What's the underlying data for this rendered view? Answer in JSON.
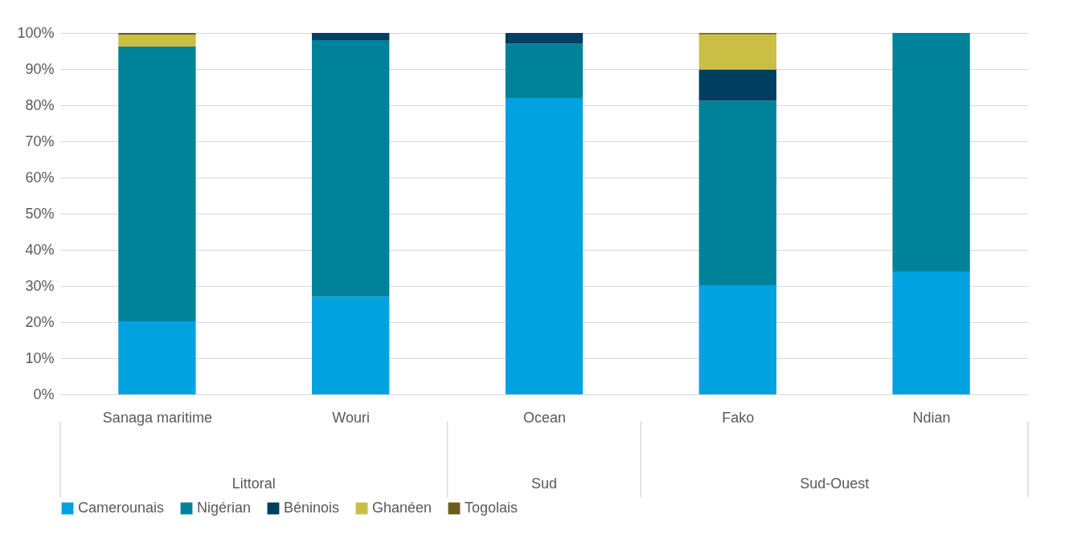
{
  "chart_data": {
    "type": "bar",
    "stacked": true,
    "categories": [
      "Sanaga maritime",
      "Wouri",
      "Ocean",
      "Fako",
      "Ndian"
    ],
    "series": [
      {
        "name": "Camerounais",
        "color": "#00a3e0",
        "values": [
          20.2,
          27,
          82,
          30.2,
          34
        ]
      },
      {
        "name": "Nigérian",
        "color": "#00829b",
        "values": [
          76,
          71,
          15,
          51,
          66
        ]
      },
      {
        "name": "Béninois",
        "color": "#003f5f",
        "values": [
          0,
          2,
          3,
          8.7,
          0
        ]
      },
      {
        "name": "Ghanéen",
        "color": "#cbbe44",
        "values": [
          3.3,
          0,
          0,
          9.7,
          0
        ]
      },
      {
        "name": "Togolais",
        "color": "#6b5e1c",
        "values": [
          0.5,
          0,
          0,
          0.4,
          0
        ]
      }
    ],
    "ylim": [
      0,
      100
    ],
    "yticks": [
      {
        "value": 0,
        "label": "0%"
      },
      {
        "value": 10,
        "label": "10%"
      },
      {
        "value": 20,
        "label": "20%"
      },
      {
        "value": 30,
        "label": "30%"
      },
      {
        "value": 40,
        "label": "40%"
      },
      {
        "value": 50,
        "label": "50%"
      },
      {
        "value": 60,
        "label": "60%"
      },
      {
        "value": 70,
        "label": "70%"
      },
      {
        "value": 80,
        "label": "80%"
      },
      {
        "value": 90,
        "label": "90%"
      },
      {
        "value": 100,
        "label": "100%"
      }
    ],
    "annotations": [
      "Littoral",
      "Sud",
      "Sud-Ouest"
    ],
    "grid": "y",
    "legend": "bottom"
  }
}
